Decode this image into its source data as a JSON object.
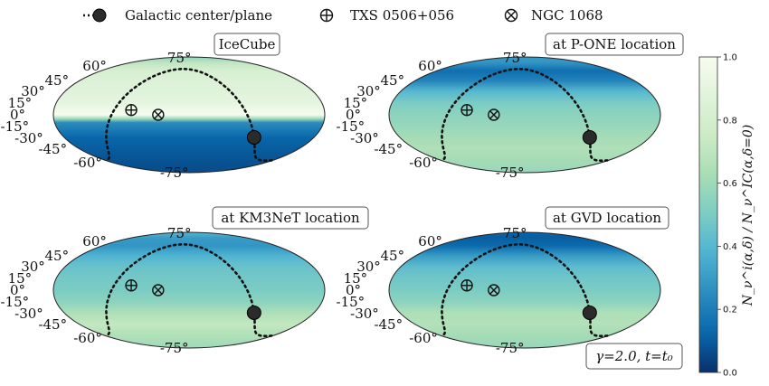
{
  "legend": {
    "items": [
      {
        "label": "Galactic center/plane",
        "icon": "dotted-line-with-dot-icon"
      },
      {
        "label": "TXS 0506+056",
        "icon": "circle-plus-icon"
      },
      {
        "label": "NGC 1068",
        "icon": "circle-times-icon"
      }
    ]
  },
  "colorbar": {
    "label": "N_ν^i(α,δ) / N_ν^IC(α,δ=0)",
    "ticks": [
      "0.0",
      "0.2",
      "0.4",
      "0.6",
      "0.8",
      "1.0"
    ],
    "range": [
      0,
      1
    ],
    "colormap": "GnBu-reversed",
    "colors": [
      "#08306b",
      "#0868ac",
      "#2b8cbe",
      "#4eb3d3",
      "#7bccc4",
      "#a8ddb5",
      "#ccebc5",
      "#e0f3db",
      "#f7fcf0"
    ]
  },
  "annotation": "γ=2.0,  t=t₀",
  "chart_data": [
    {
      "type": "heatmap",
      "projection": "mollweide",
      "title": "IceCube",
      "lat_ticks": [
        "75°",
        "60°",
        "45°",
        "30°",
        "15°",
        "0°",
        "-15°",
        "-30°",
        "-45°",
        "-60°",
        "-75°"
      ],
      "dec_profile": [
        {
          "dec": 90,
          "value": 0.55
        },
        {
          "dec": 75,
          "value": 0.7
        },
        {
          "dec": 60,
          "value": 0.82
        },
        {
          "dec": 45,
          "value": 0.85
        },
        {
          "dec": 30,
          "value": 0.87
        },
        {
          "dec": 15,
          "value": 0.9
        },
        {
          "dec": 5,
          "value": 0.97
        },
        {
          "dec": 0,
          "value": 1.0
        },
        {
          "dec": -5,
          "value": 0.6
        },
        {
          "dec": -10,
          "value": 0.25
        },
        {
          "dec": -30,
          "value": 0.12
        },
        {
          "dec": -60,
          "value": 0.08
        },
        {
          "dec": -90,
          "value": 0.06
        }
      ],
      "sources": [
        {
          "name": "TXS 0506+056",
          "ra": 77,
          "dec": 6
        },
        {
          "name": "NGC 1068",
          "ra": 41,
          "dec": 0
        }
      ]
    },
    {
      "type": "heatmap",
      "projection": "mollweide",
      "title": "at P-ONE location",
      "lat_ticks": [
        "75°",
        "60°",
        "45°",
        "30°",
        "15°",
        "0°",
        "-15°",
        "-30°",
        "-45°",
        "-60°",
        "-75°"
      ],
      "dec_profile": [
        {
          "dec": 90,
          "value": 0.3
        },
        {
          "dec": 75,
          "value": 0.28
        },
        {
          "dec": 60,
          "value": 0.15
        },
        {
          "dec": 45,
          "value": 0.22
        },
        {
          "dec": 30,
          "value": 0.4
        },
        {
          "dec": 15,
          "value": 0.5
        },
        {
          "dec": 0,
          "value": 0.55
        },
        {
          "dec": -15,
          "value": 0.58
        },
        {
          "dec": -30,
          "value": 0.62
        },
        {
          "dec": -45,
          "value": 0.65
        },
        {
          "dec": -60,
          "value": 0.62
        },
        {
          "dec": -90,
          "value": 0.58
        }
      ],
      "sources": [
        {
          "name": "TXS 0506+056",
          "ra": 77,
          "dec": 6
        },
        {
          "name": "NGC 1068",
          "ra": 41,
          "dec": 0
        }
      ]
    },
    {
      "type": "heatmap",
      "projection": "mollweide",
      "title": "at KM3NeT location",
      "lat_ticks": [
        "75°",
        "60°",
        "45°",
        "30°",
        "15°",
        "0°",
        "-15°",
        "-30°",
        "-45°",
        "-60°",
        "-75°"
      ],
      "dec_profile": [
        {
          "dec": 90,
          "value": 0.4
        },
        {
          "dec": 75,
          "value": 0.3
        },
        {
          "dec": 60,
          "value": 0.28
        },
        {
          "dec": 45,
          "value": 0.38
        },
        {
          "dec": 30,
          "value": 0.45
        },
        {
          "dec": 15,
          "value": 0.48
        },
        {
          "dec": 0,
          "value": 0.5
        },
        {
          "dec": -15,
          "value": 0.55
        },
        {
          "dec": -30,
          "value": 0.65
        },
        {
          "dec": -45,
          "value": 0.72
        },
        {
          "dec": -60,
          "value": 0.66
        },
        {
          "dec": -90,
          "value": 0.6
        }
      ],
      "sources": [
        {
          "name": "TXS 0506+056",
          "ra": 77,
          "dec": 6
        },
        {
          "name": "NGC 1068",
          "ra": 41,
          "dec": 0
        }
      ]
    },
    {
      "type": "heatmap",
      "projection": "mollweide",
      "title": "at GVD location",
      "lat_ticks": [
        "75°",
        "60°",
        "45°",
        "30°",
        "15°",
        "0°",
        "-15°",
        "-30°",
        "-45°",
        "-60°",
        "-75°"
      ],
      "dec_profile": [
        {
          "dec": 90,
          "value": 0.12
        },
        {
          "dec": 75,
          "value": 0.1
        },
        {
          "dec": 60,
          "value": 0.14
        },
        {
          "dec": 45,
          "value": 0.3
        },
        {
          "dec": 30,
          "value": 0.42
        },
        {
          "dec": 15,
          "value": 0.47
        },
        {
          "dec": 0,
          "value": 0.5
        },
        {
          "dec": -15,
          "value": 0.55
        },
        {
          "dec": -30,
          "value": 0.65
        },
        {
          "dec": -45,
          "value": 0.66
        },
        {
          "dec": -60,
          "value": 0.62
        },
        {
          "dec": -90,
          "value": 0.58
        }
      ],
      "sources": [
        {
          "name": "TXS 0506+056",
          "ra": 77,
          "dec": 6
        },
        {
          "name": "NGC 1068",
          "ra": 41,
          "dec": 0
        }
      ]
    }
  ]
}
